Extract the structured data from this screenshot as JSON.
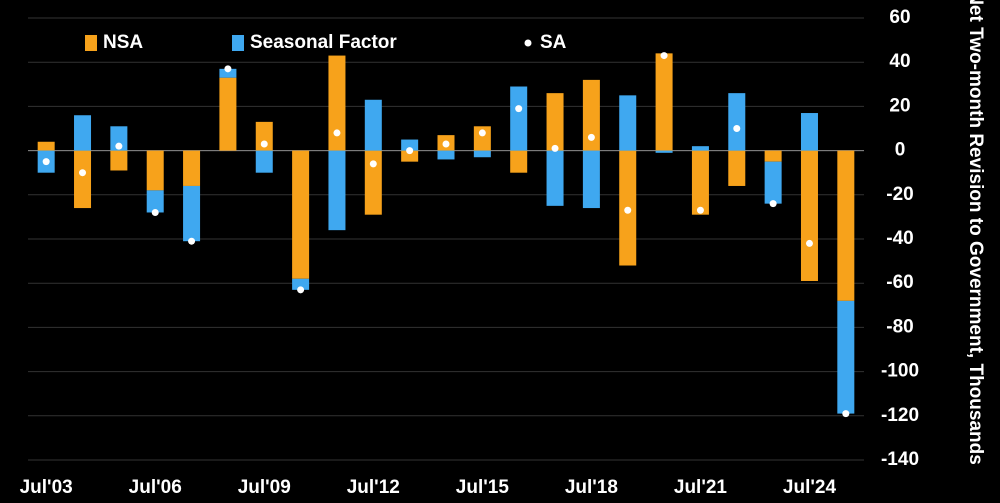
{
  "chart_data": {
    "type": "bar",
    "stacked": true,
    "y_label": "Net Two-month Revision to Government, Thousands",
    "categories": [
      "Jul'03",
      null,
      null,
      "Jul'06",
      null,
      null,
      "Jul'09",
      null,
      null,
      "Jul'12",
      null,
      null,
      "Jul'15",
      null,
      null,
      "Jul'18",
      null,
      null,
      "Jul'21",
      null,
      null,
      "Jul'24",
      null
    ],
    "series": [
      {
        "name": "NSA",
        "color": "#f7a21b",
        "values": [
          4,
          -26,
          -9,
          -18,
          -16,
          33,
          13,
          -58,
          43,
          -29,
          -5,
          7,
          11,
          -10,
          26,
          32,
          -52,
          44,
          -29,
          -16,
          -5,
          -59,
          -68
        ]
      },
      {
        "name": "Seasonal Factor",
        "color": "#3fa8f0",
        "values": [
          -10,
          16,
          11,
          -10,
          -25,
          4,
          -10,
          -5,
          -36,
          23,
          5,
          -4,
          -3,
          29,
          -25,
          -26,
          25,
          -1,
          2,
          26,
          -19,
          17,
          -51
        ]
      },
      {
        "name": "SA",
        "color": "#ffffff",
        "type": "scatter",
        "values": [
          -5,
          -10,
          2,
          -28,
          -41,
          37,
          3,
          -63,
          8,
          -6,
          0,
          3,
          8,
          19,
          1,
          6,
          -27,
          43,
          -27,
          10,
          -24,
          -42,
          -119
        ]
      }
    ],
    "ylim": [
      -140,
      60
    ],
    "yticks": [
      60,
      40,
      20,
      0,
      -20,
      -40,
      -60,
      -80,
      -100,
      -120,
      -140
    ],
    "grid": true
  }
}
